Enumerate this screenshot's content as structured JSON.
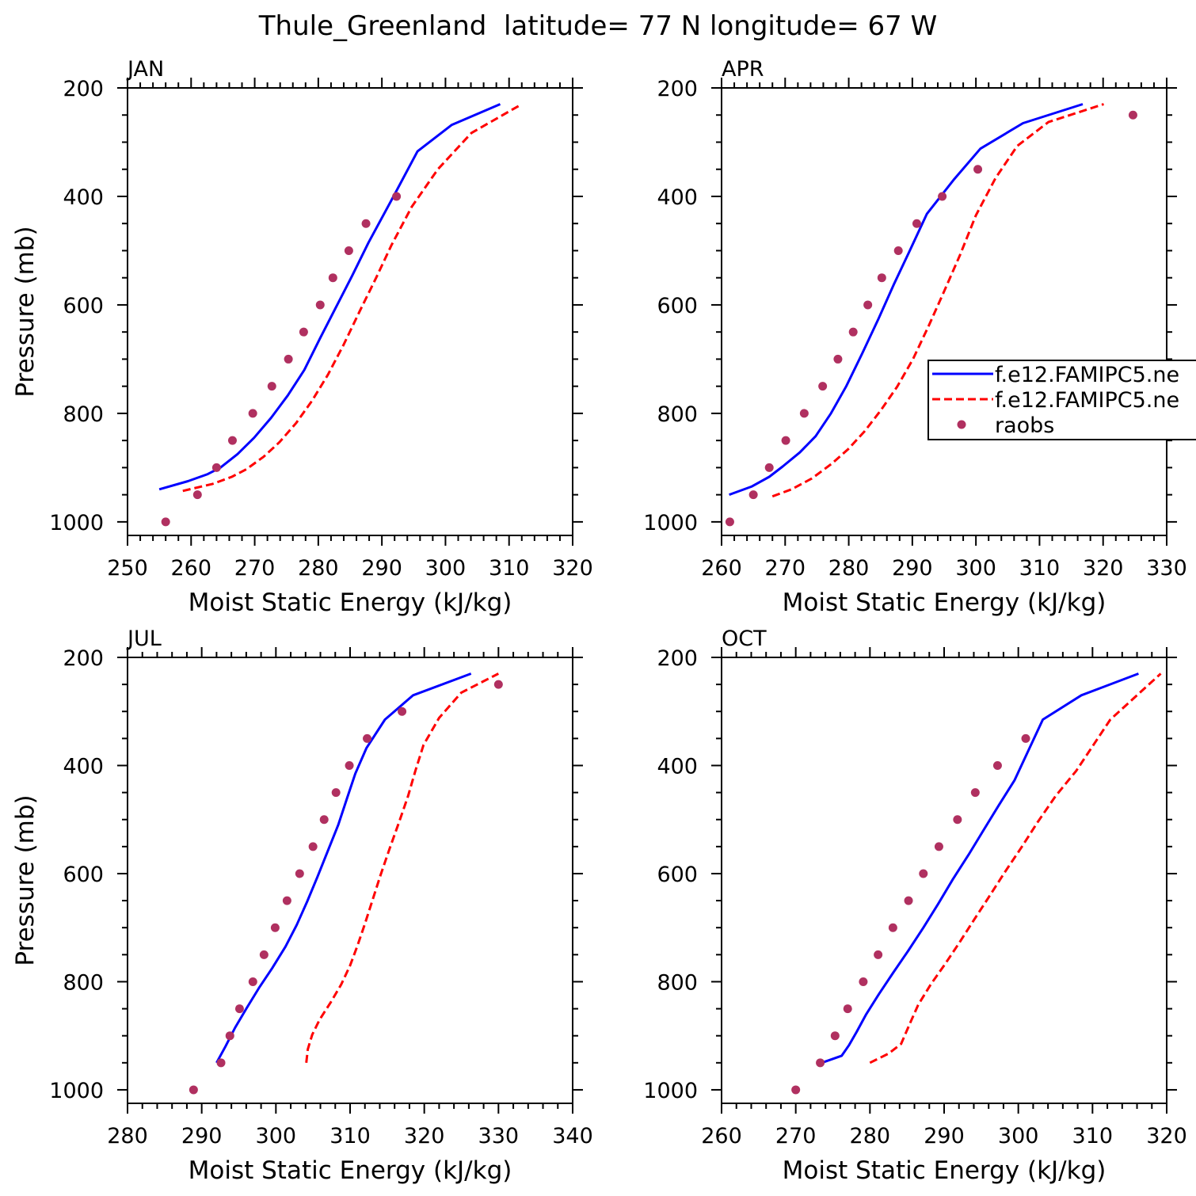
{
  "figure_title": "Thule_Greenland  latitude= 77 N longitude= 67 W",
  "chart_data": [
    {
      "type": "line",
      "title": "JAN",
      "xlabel": "Moist Static Energy (kJ/kg)",
      "ylabel": "Pressure (mb)",
      "xlim": [
        250,
        320
      ],
      "ylim": [
        1025,
        200
      ],
      "xticks": [
        250,
        260,
        270,
        280,
        290,
        300,
        310,
        320
      ],
      "yticks": [
        200,
        400,
        600,
        800,
        1000
      ],
      "series": [
        {
          "name": "f.e12.FAMIPC5.ne",
          "style": "solid",
          "color": "#0000ff",
          "x": [
            255.0,
            259.5,
            262.6,
            264.6,
            267.3,
            269.9,
            272.6,
            275.2,
            277.8,
            280.3,
            282.8,
            285.3,
            287.9,
            292.1,
            295.6,
            301.0,
            308.6
          ],
          "y": [
            940,
            925,
            912,
            900,
            875,
            845,
            808,
            767,
            720,
            661,
            604,
            547,
            485,
            394,
            317,
            268,
            230
          ]
        },
        {
          "name": "f.e12.FAMIPC5.ne",
          "style": "dashed",
          "color": "#ff0000",
          "x": [
            258.7,
            263.4,
            266.4,
            268.7,
            271.4,
            273.9,
            276.5,
            279.0,
            281.5,
            284.0,
            286.5,
            289.1,
            291.5,
            294.7,
            298.8,
            304.1,
            312.0
          ],
          "y": [
            943,
            930,
            917,
            903,
            880,
            853,
            818,
            777,
            729,
            673,
            612,
            550,
            490,
            419,
            350,
            283,
            230
          ]
        },
        {
          "name": "raobs",
          "style": "points",
          "color": "#b03060",
          "x": [
            256.0,
            261.0,
            264.0,
            266.5,
            269.7,
            272.7,
            275.3,
            277.7,
            280.3,
            282.3,
            284.8,
            287.5,
            292.3
          ],
          "y": [
            1000,
            950,
            900,
            850,
            800,
            750,
            700,
            650,
            600,
            550,
            500,
            450,
            400
          ]
        }
      ]
    },
    {
      "type": "line",
      "title": "APR",
      "xlabel": "Moist Static Energy (kJ/kg)",
      "ylabel": "",
      "xlim": [
        260,
        330
      ],
      "ylim": [
        1025,
        200
      ],
      "xticks": [
        260,
        270,
        280,
        290,
        300,
        310,
        320,
        330
      ],
      "yticks": [
        200,
        400,
        600,
        800,
        1000
      ],
      "series": [
        {
          "name": "f.e12.FAMIPC5.ne",
          "style": "solid",
          "color": "#0000ff",
          "x": [
            261.2,
            264.7,
            267.5,
            269.6,
            272.3,
            274.8,
            277.2,
            279.6,
            282.1,
            284.7,
            287.1,
            289.6,
            292.3,
            296.6,
            300.7,
            307.4,
            316.8
          ],
          "y": [
            950,
            935,
            917,
            898,
            872,
            842,
            800,
            750,
            690,
            625,
            562,
            500,
            432,
            368,
            312,
            265,
            230
          ]
        },
        {
          "name": "f.e12.FAMIPC5.ne",
          "style": "dashed",
          "color": "#ff0000",
          "x": [
            268.0,
            271.0,
            274.2,
            277.3,
            279.9,
            282.5,
            285.0,
            287.6,
            290.1,
            292.6,
            295.0,
            297.5,
            300.0,
            303.1,
            306.5,
            311.4,
            320.1
          ],
          "y": [
            953,
            940,
            920,
            893,
            866,
            833,
            795,
            751,
            700,
            638,
            575,
            508,
            435,
            366,
            307,
            263,
            230
          ]
        },
        {
          "name": "raobs",
          "style": "points",
          "color": "#b03060",
          "x": [
            261.3,
            265.0,
            267.5,
            270.1,
            273.0,
            275.9,
            278.3,
            280.7,
            283.0,
            285.2,
            287.8,
            290.7,
            294.7,
            300.3,
            324.7
          ],
          "y": [
            1000,
            950,
            900,
            850,
            800,
            750,
            700,
            650,
            600,
            550,
            500,
            450,
            400,
            350,
            250
          ]
        }
      ],
      "legend": {
        "location": "right",
        "entries": [
          "f.e12.FAMIPC5.ne",
          "f.e12.FAMIPC5.ne",
          "raobs"
        ]
      }
    },
    {
      "type": "line",
      "title": "JUL",
      "xlabel": "Moist Static Energy (kJ/kg)",
      "ylabel": "Pressure (mb)",
      "xlim": [
        280,
        340
      ],
      "ylim": [
        1025,
        200
      ],
      "xticks": [
        280,
        290,
        300,
        310,
        320,
        330,
        340
      ],
      "yticks": [
        200,
        400,
        600,
        800,
        1000
      ],
      "series": [
        {
          "name": "f.e12.FAMIPC5.ne",
          "style": "solid",
          "color": "#0000ff",
          "x": [
            292.0,
            293.2,
            294.5,
            296.0,
            297.7,
            299.5,
            301.3,
            302.8,
            304.2,
            305.6,
            307.0,
            308.4,
            309.6,
            310.7,
            312.2,
            314.7,
            318.5,
            326.3
          ],
          "y": [
            950,
            920,
            885,
            850,
            812,
            775,
            735,
            695,
            652,
            606,
            558,
            510,
            460,
            415,
            368,
            315,
            270,
            230
          ]
        },
        {
          "name": "f.e12.FAMIPC5.ne",
          "style": "dashed",
          "color": "#ff0000",
          "x": [
            304.1,
            304.3,
            304.9,
            305.9,
            307.4,
            308.8,
            310.0,
            311.0,
            312.0,
            313.0,
            314.1,
            315.3,
            316.6,
            317.8,
            318.8,
            319.9,
            322.0,
            325.0,
            330.0
          ],
          "y": [
            950,
            925,
            898,
            870,
            838,
            805,
            770,
            733,
            693,
            650,
            603,
            555,
            505,
            457,
            410,
            362,
            312,
            265,
            230
          ]
        },
        {
          "name": "raobs",
          "style": "points",
          "color": "#b03060",
          "x": [
            288.9,
            292.6,
            293.8,
            295.1,
            296.9,
            298.4,
            299.9,
            301.5,
            303.2,
            305.0,
            306.5,
            308.1,
            309.9,
            312.3,
            317.0,
            330.0
          ],
          "y": [
            1000,
            950,
            900,
            850,
            800,
            750,
            700,
            650,
            600,
            550,
            500,
            450,
            400,
            350,
            300,
            250
          ]
        }
      ]
    },
    {
      "type": "line",
      "title": "OCT",
      "xlabel": "Moist Static Energy (kJ/kg)",
      "ylabel": "",
      "xlim": [
        260,
        320
      ],
      "ylim": [
        1025,
        200
      ],
      "xticks": [
        260,
        270,
        280,
        290,
        300,
        310,
        320
      ],
      "yticks": [
        200,
        400,
        600,
        800,
        1000
      ],
      "series": [
        {
          "name": "f.e12.FAMIPC5.ne",
          "style": "solid",
          "color": "#0000ff",
          "x": [
            273.5,
            276.2,
            277.2,
            278.2,
            279.5,
            281.2,
            283.1,
            285.2,
            287.2,
            289.2,
            291.2,
            293.3,
            295.3,
            297.3,
            299.5,
            303.3,
            308.5,
            316.2
          ],
          "y": [
            950,
            937,
            917,
            893,
            860,
            823,
            784,
            742,
            700,
            656,
            610,
            565,
            520,
            475,
            427,
            315,
            270,
            230
          ]
        },
        {
          "name": "f.e12.FAMIPC5.ne",
          "style": "dashed",
          "color": "#ff0000",
          "x": [
            280.0,
            282.5,
            284.2,
            285.4,
            286.5,
            288.2,
            290.1,
            292.0,
            294.0,
            296.1,
            298.2,
            300.4,
            302.6,
            305.0,
            307.8,
            312.4,
            319.2
          ],
          "y": [
            950,
            933,
            915,
            877,
            843,
            805,
            768,
            729,
            686,
            642,
            597,
            552,
            505,
            457,
            410,
            315,
            230
          ]
        },
        {
          "name": "raobs",
          "style": "points",
          "color": "#b03060",
          "x": [
            270.0,
            273.3,
            275.3,
            277.0,
            279.1,
            281.1,
            283.1,
            285.2,
            287.2,
            289.3,
            291.8,
            294.2,
            297.2,
            301.0
          ],
          "y": [
            1000,
            950,
            900,
            850,
            800,
            750,
            700,
            650,
            600,
            550,
            500,
            450,
            400,
            350
          ]
        }
      ]
    }
  ]
}
